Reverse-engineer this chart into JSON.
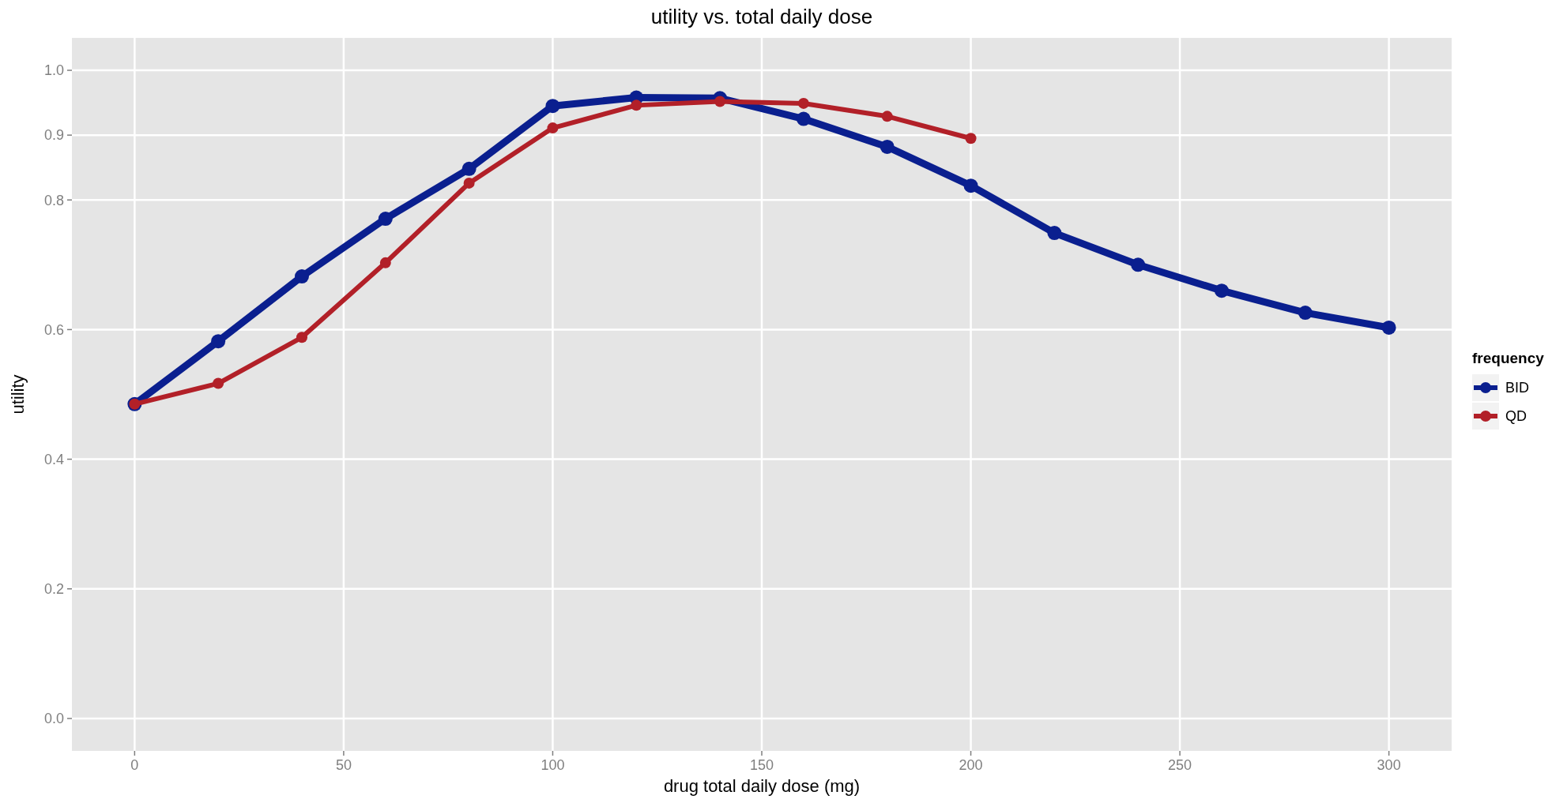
{
  "chart_data": {
    "type": "line",
    "title": "utility vs. total daily dose",
    "xlabel": "drug total daily dose (mg)",
    "ylabel": "utility",
    "legend_title": "frequency",
    "x": [
      0,
      20,
      40,
      60,
      80,
      100,
      120,
      140,
      160,
      180,
      200,
      220,
      240,
      260,
      280,
      300
    ],
    "series": [
      {
        "name": "BID",
        "color": "#0a1f8f",
        "values": [
          0.485,
          0.582,
          0.682,
          0.771,
          0.848,
          0.945,
          0.958,
          0.957,
          0.925,
          0.882,
          0.822,
          0.749,
          0.7,
          0.66,
          0.626,
          0.603
        ]
      },
      {
        "name": "QD",
        "color": "#b22028",
        "x": [
          0,
          20,
          40,
          60,
          80,
          100,
          120,
          140,
          160,
          180,
          200
        ],
        "values": [
          0.485,
          0.517,
          0.588,
          0.703,
          0.826,
          0.911,
          0.946,
          0.952,
          0.949,
          0.929,
          0.895
        ]
      }
    ],
    "xlim": [
      -15,
      315
    ],
    "xticks": [
      0,
      50,
      100,
      150,
      200,
      250,
      300
    ],
    "ylim": [
      -0.05,
      1.05
    ],
    "yticks": [
      "0.0",
      0.2,
      0.4,
      0.6,
      0.8,
      0.9,
      "1.0"
    ],
    "grid": true,
    "legend": "right",
    "marker": "circle",
    "line_style": "solid"
  }
}
